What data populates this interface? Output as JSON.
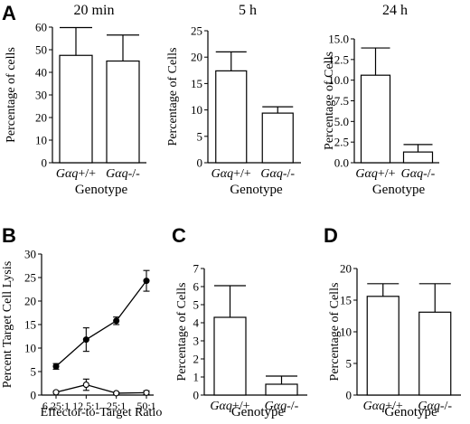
{
  "figure": {
    "panel_letters": [
      "A",
      "B",
      "C",
      "D"
    ]
  },
  "chart_data": [
    {
      "id": "A1",
      "panel": "A",
      "type": "bar",
      "title": "20 min",
      "ylabel": "Percentage of cells",
      "xlabel": "Genotype",
      "categories": [
        "Gαq+/+",
        "Gαq-/-"
      ],
      "values": [
        47.5,
        45
      ],
      "errors": [
        12.3,
        11.5
      ],
      "ylim": [
        0,
        60
      ],
      "yticks": [
        "0",
        "10",
        "20",
        "30",
        "40",
        "50",
        "60"
      ],
      "grid": false
    },
    {
      "id": "A2",
      "panel": "A",
      "type": "bar",
      "title": "5 h",
      "ylabel": "Percentage of Cells",
      "xlabel": "Genotype",
      "categories": [
        "Gαq+/+",
        "Gαq-/-"
      ],
      "values": [
        17.4,
        9.4
      ],
      "errors": [
        3.6,
        1.2
      ],
      "ylim": [
        0,
        25
      ],
      "yticks": [
        "0",
        "5",
        "10",
        "15",
        "20",
        "25"
      ],
      "grid": false
    },
    {
      "id": "A3",
      "panel": "A",
      "type": "bar",
      "title": "24 h",
      "ylabel": "Percentage of Cells",
      "xlabel": "Genotype",
      "categories": [
        "Gαq+/+",
        "Gαq-/-"
      ],
      "values": [
        10.6,
        1.3
      ],
      "errors": [
        3.3,
        0.9
      ],
      "ylim": [
        0,
        15
      ],
      "yticks": [
        "0.0",
        "2.5",
        "5.0",
        "7.5",
        "10.0",
        "12.5",
        "15.0"
      ],
      "grid": false
    },
    {
      "id": "B",
      "panel": "B",
      "type": "line",
      "title": "",
      "ylabel": "Percent Target Cell Lysis",
      "xlabel": "Effector-to-Target Ratio",
      "categories": [
        "6.25:1",
        "12.5:1",
        "25:1",
        "50:1"
      ],
      "series": [
        {
          "marker": "filled",
          "values": [
            6.1,
            11.8,
            15.8,
            24.3
          ],
          "errors": [
            0.6,
            2.5,
            0.8,
            2.2
          ]
        },
        {
          "marker": "open",
          "values": [
            0.6,
            2.2,
            0.4,
            0.5
          ],
          "errors": [
            0.2,
            1.2,
            0.2,
            0.4
          ]
        }
      ],
      "ylim": [
        0,
        30
      ],
      "yticks": [
        "0",
        "5",
        "10",
        "15",
        "20",
        "25",
        "30"
      ],
      "grid": false
    },
    {
      "id": "C",
      "panel": "C",
      "type": "bar",
      "title": "",
      "ylabel": "Percentage of Cells",
      "xlabel": "Genotype",
      "categories": [
        "Gαq+/+",
        "Gαq-/-"
      ],
      "values": [
        4.3,
        0.6
      ],
      "errors": [
        1.75,
        0.45
      ],
      "ylim": [
        0,
        7
      ],
      "yticks": [
        "0",
        "1",
        "2",
        "3",
        "4",
        "5",
        "6",
        "7"
      ],
      "grid": false
    },
    {
      "id": "D",
      "panel": "D",
      "type": "bar",
      "title": "",
      "ylabel": "Percentage of Cells",
      "xlabel": "Genotype",
      "categories": [
        "Gαq+/+",
        "Gαq-/-"
      ],
      "values": [
        15.6,
        13.1
      ],
      "errors": [
        2.0,
        4.5
      ],
      "ylim": [
        0,
        20
      ],
      "yticks": [
        "0",
        "5",
        "10",
        "15",
        "20"
      ],
      "grid": false
    }
  ]
}
